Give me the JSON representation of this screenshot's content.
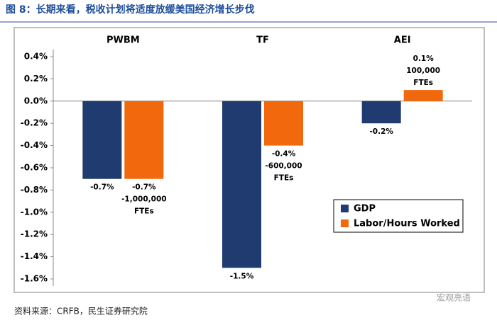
{
  "title": "图 8：长期来看，税收计划将适度放缓美国经济增长步伐",
  "source": "资料来源：CRFB，民生证券研究院",
  "watermark": "宏观亮语",
  "chart_data": {
    "type": "bar",
    "categories": [
      "PWBM",
      "TF",
      "AEI"
    ],
    "series": [
      {
        "name": "GDP",
        "color": "#1f3b6f",
        "values": [
          -0.7,
          -1.5,
          -0.2
        ],
        "value_labels": [
          "-0.7%",
          "-1.5%",
          "-0.2%"
        ]
      },
      {
        "name": "Labor/Hours Worked",
        "color": "#f2690d",
        "values": [
          -0.7,
          -0.4,
          0.1
        ],
        "value_labels": [
          "-0.7%",
          "-0.4%",
          "0.1%"
        ],
        "value_notes": [
          "-1,000,000 FTEs",
          "-600,000 FTEs",
          "100,000 FTEs"
        ]
      }
    ],
    "ylim": [
      -1.6,
      0.4
    ],
    "yticks": [
      {
        "value": 0.4,
        "label": "0.4%"
      },
      {
        "value": 0.2,
        "label": "0.2%"
      },
      {
        "value": 0,
        "label": "0.0%"
      },
      {
        "value": -0.2,
        "label": "-0.2%"
      },
      {
        "value": -0.4,
        "label": "-0.4%"
      },
      {
        "value": -0.6,
        "label": "-0.6%"
      },
      {
        "value": -0.8,
        "label": "-0.8%"
      },
      {
        "value": -1.0,
        "label": "-1.0%"
      },
      {
        "value": -1.2,
        "label": "-1.2%"
      },
      {
        "value": -1.4,
        "label": "-1.4%"
      },
      {
        "value": -1.6,
        "label": "-1.6%"
      }
    ],
    "legend": "lower-right"
  }
}
